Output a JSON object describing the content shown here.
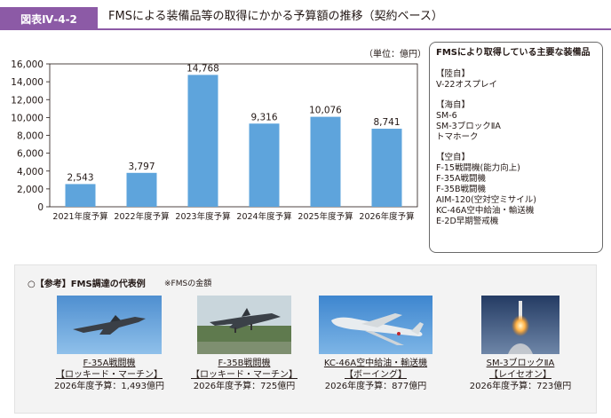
{
  "header": {
    "badge": "図表Ⅳ-4-2",
    "title": "FMSによる装備品等の取得にかかる予算額の推移（契約ベース）"
  },
  "chart_data": {
    "type": "bar",
    "unit_label": "（単位：億円）",
    "categories": [
      "2021年度予算",
      "2022年度予算",
      "2023年度予算",
      "2024年度予算",
      "2025年度予算",
      "2026年度予算"
    ],
    "values": [
      2543,
      3797,
      14768,
      9316,
      10076,
      8741
    ],
    "value_labels": [
      "2,543",
      "3,797",
      "14,768",
      "9,316",
      "10,076",
      "8,741"
    ],
    "y_ticks": [
      "0",
      "2,000",
      "4,000",
      "6,000",
      "8,000",
      "10,000",
      "12,000",
      "14,000",
      "16,000"
    ],
    "ylim": [
      0,
      16000
    ],
    "bar_color": "#5ea4dc",
    "grid": false
  },
  "equipment": {
    "title": "FMSにより取得している主要な装備品",
    "groups": [
      {
        "heading": "【陸自】",
        "items": [
          "V-22オスプレイ"
        ]
      },
      {
        "heading": "【海自】",
        "items": [
          "SM-6",
          "SM-3ブロックⅡA",
          "トマホーク"
        ]
      },
      {
        "heading": "【空自】",
        "items": [
          "F-15戦闘機(能力向上)",
          "F-35A戦闘機",
          "F-35B戦闘機",
          "AIM-120(空対空ミサイル)",
          "KC-46A空中給油・輸送機",
          "E-2D早期警戒機"
        ]
      }
    ]
  },
  "reference": {
    "title": "○【参考】FMS調達の代表例",
    "note": "※FMSの金額",
    "examples": [
      {
        "name": "F-35A戦闘機",
        "maker": "【ロッキード・マーチン】",
        "budget": "2026年度予算：1,493億円",
        "icon": "fighter-jet-icon"
      },
      {
        "name": "F-35B戦闘機",
        "maker": "【ロッキード・マーチン】",
        "budget": "2026年度予算：725億円",
        "icon": "stovl-jet-icon"
      },
      {
        "name": "KC-46A空中給油・輸送機",
        "maker": "【ボーイング】",
        "budget": "2026年度予算：877億円",
        "icon": "tanker-aircraft-icon"
      },
      {
        "name": "SM-3ブロックⅡA",
        "maker": "【レイセオン】",
        "budget": "2026年度予算：723億円",
        "icon": "missile-launch-icon"
      }
    ]
  },
  "colors": {
    "accent": "#8c5aa6",
    "bar": "#5ea4dc"
  }
}
